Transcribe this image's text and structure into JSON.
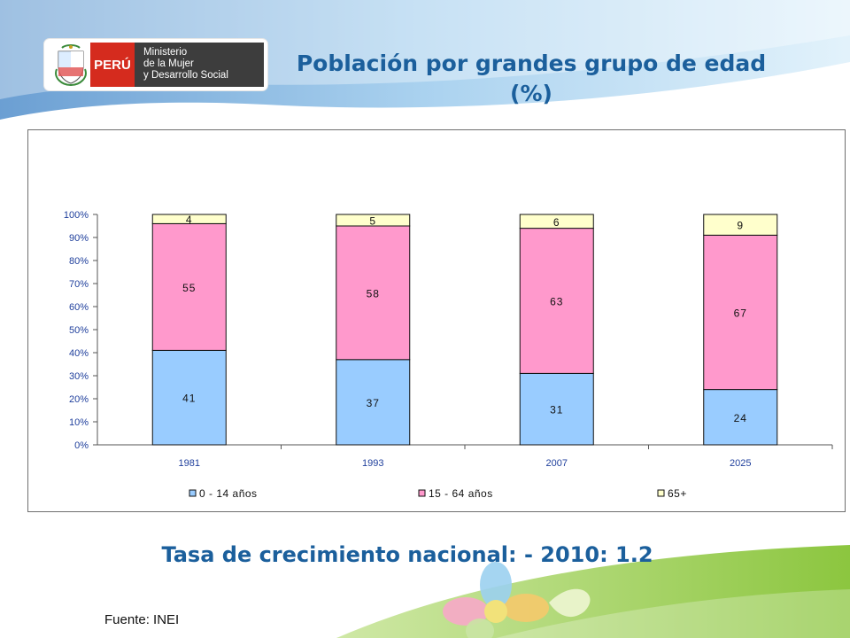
{
  "header": {
    "peru_label": "PERÚ",
    "ministry_lines": [
      "Ministerio",
      "de la Mujer",
      "y Desarrollo Social"
    ],
    "title_line1": "Población por grandes grupo de edad",
    "title_line2": "(%)"
  },
  "chart_data": {
    "type": "bar",
    "stacked": true,
    "categories": [
      "1981",
      "1993",
      "2007",
      "2025"
    ],
    "series": [
      {
        "name": "0 - 14 años",
        "values": [
          41,
          37,
          31,
          24
        ],
        "color": "#99ccff"
      },
      {
        "name": "15 - 64 años",
        "values": [
          55,
          58,
          63,
          67
        ],
        "color": "#ff99cc"
      },
      {
        "name": "65+",
        "values": [
          4,
          5,
          6,
          9
        ],
        "color": "#ffffcc"
      }
    ],
    "ylim": [
      0,
      100
    ],
    "yticks": [
      "0%",
      "10%",
      "20%",
      "30%",
      "40%",
      "50%",
      "60%",
      "70%",
      "80%",
      "90%",
      "100%"
    ],
    "grid": false,
    "legend": "bottom"
  },
  "footer": {
    "growth_text": "Tasa de crecimiento nacional: - 2010: 1.2",
    "source_text": "Fuente: INEI"
  },
  "colors": {
    "title": "#1b5f9c",
    "axis_text": "#1f3f9c",
    "peru_red": "#d52b1e",
    "ministry_gray": "#3d3d3d"
  }
}
